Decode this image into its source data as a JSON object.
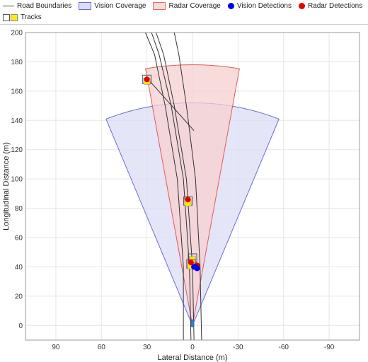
{
  "legend": {
    "road": "Road Boundaries",
    "vision_cov": "Vision Coverage",
    "radar_cov": "Radar Coverage",
    "vision_det": "Vision Detections",
    "radar_det": "Radar Detections",
    "tracks": "Tracks"
  },
  "colors": {
    "vision_fill": "#dcdcf6",
    "vision_edge": "#6b6bd6",
    "radar_fill": "#f6d0d0",
    "radar_edge": "#e05a5a",
    "vision_det": "#0000e6",
    "radar_det": "#e60000",
    "track": "#ffee00",
    "grid": "#e6e6e6"
  },
  "axes": {
    "xlabel": "Lateral Distance (m)",
    "ylabel": "Longitudinal Distance (m)",
    "x_ticks": [
      "90",
      "60",
      "30",
      "0",
      "-30",
      "-60",
      "-90"
    ],
    "y_ticks": [
      "0",
      "20",
      "40",
      "60",
      "80",
      "100",
      "120",
      "140",
      "160",
      "180",
      "200"
    ]
  },
  "chart_data": {
    "type": "scatter",
    "xlabel": "Lateral Distance (m)",
    "ylabel": "Longitudinal Distance (m)",
    "x_reversed": true,
    "xlim": [
      110,
      -110
    ],
    "ylim": [
      -10,
      200
    ],
    "grid": true,
    "legend_position": "top",
    "vision_coverage": {
      "origin": [
        0,
        0
      ],
      "range": 152,
      "half_angle_deg": 22
    },
    "radar_coverage": {
      "origin": [
        0,
        0
      ],
      "range": 178,
      "half_angle_deg": 10
    },
    "road_boundaries": [
      [
        [
          1,
          -10
        ],
        [
          2,
          40
        ],
        [
          6,
          100
        ],
        [
          14,
          150
        ],
        [
          22,
          185
        ],
        [
          27,
          200
        ]
      ],
      [
        [
          -1,
          -10
        ],
        [
          0,
          40
        ],
        [
          4,
          100
        ],
        [
          12,
          150
        ],
        [
          19,
          185
        ],
        [
          24,
          200
        ]
      ],
      [
        [
          6,
          -10
        ],
        [
          6,
          40
        ],
        [
          10,
          100
        ],
        [
          18,
          150
        ],
        [
          25,
          185
        ],
        [
          31,
          200
        ]
      ],
      [
        [
          -6,
          -10
        ],
        [
          -5,
          40
        ],
        [
          -2,
          100
        ],
        [
          4,
          150
        ],
        [
          9,
          185
        ],
        [
          12,
          200
        ]
      ]
    ],
    "heading_line": [
      [
        30,
        169
      ],
      [
        -1,
        133
      ]
    ],
    "vision_detections": [
      [
        -2,
        40
      ],
      [
        -3,
        39
      ],
      [
        -1,
        40
      ]
    ],
    "radar_detections": [
      [
        30,
        168
      ],
      [
        3,
        86
      ],
      [
        1,
        43
      ],
      [
        -1,
        40
      ],
      [
        -3,
        41
      ]
    ],
    "tracks": [
      {
        "x": 30,
        "y": 168
      },
      {
        "x": 3,
        "y": 85
      },
      {
        "x": 0,
        "y": 46
      },
      {
        "x": 1,
        "y": 42
      }
    ],
    "ego": {
      "x": 0,
      "y": 1
    }
  }
}
